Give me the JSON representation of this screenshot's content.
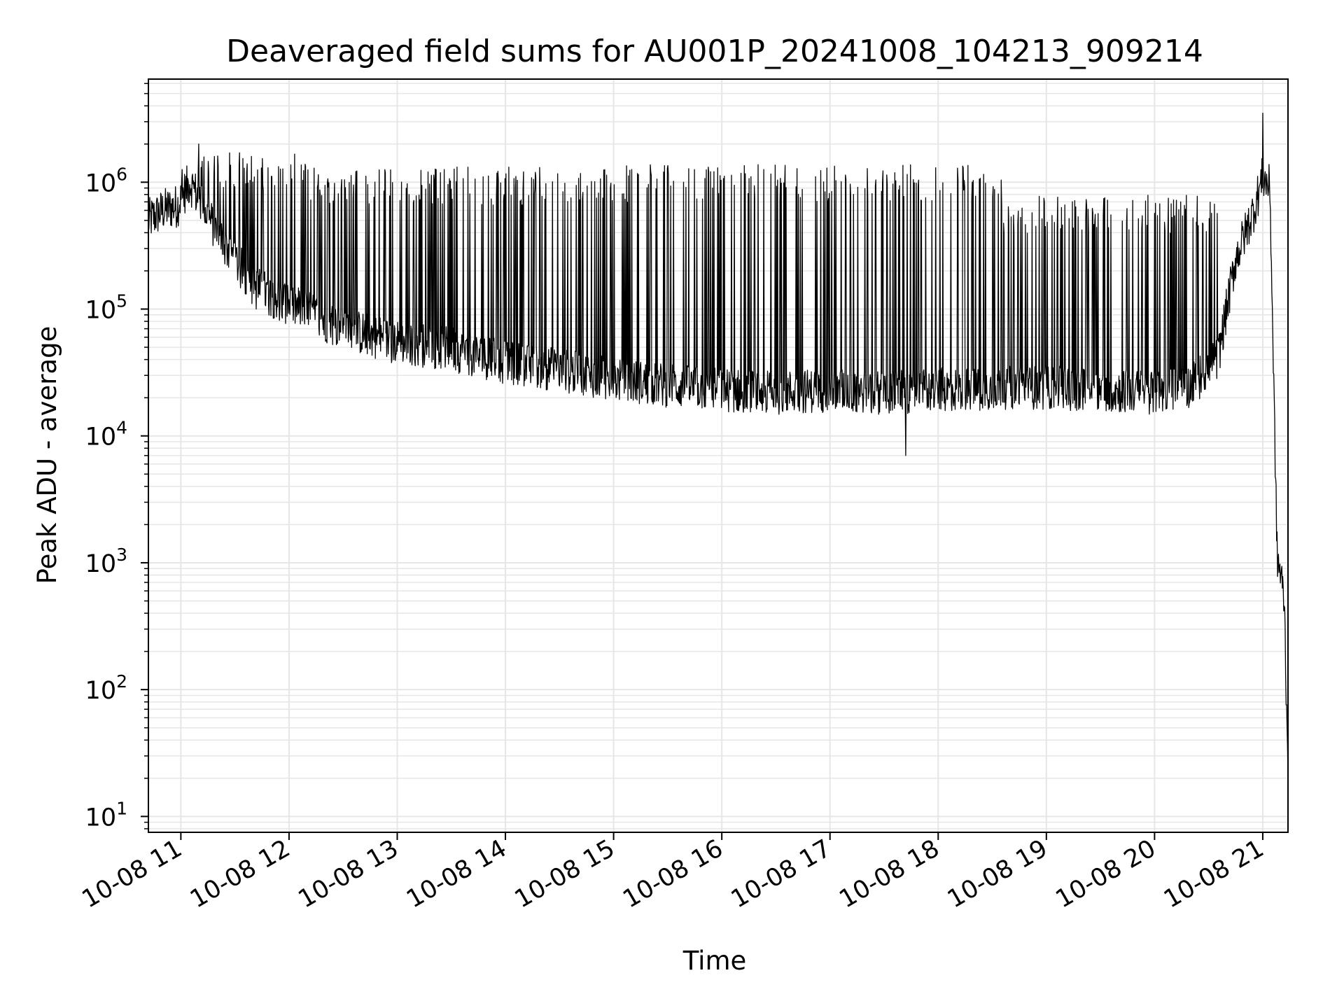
{
  "chart_data": {
    "type": "line",
    "title": "Deaveraged field sums for AU001P_20241008_104213_909214",
    "xlabel": "Time",
    "ylabel": "Peak ADU - average",
    "xlim": [
      "2024-10-08 10:42",
      "2024-10-08 21:14"
    ],
    "ylim": [
      7.5,
      6500000
    ],
    "yscale": "log",
    "grid": true,
    "grid_color": "#e6e6e6",
    "line_color": "#000000",
    "x_ticks": [
      "10-08 11",
      "10-08 12",
      "10-08 13",
      "10-08 14",
      "10-08 15",
      "10-08 16",
      "10-08 17",
      "10-08 18",
      "10-08 19",
      "10-08 20",
      "10-08 21"
    ],
    "x_tick_times": [
      "2024-10-08 11:00",
      "2024-10-08 12:00",
      "2024-10-08 13:00",
      "2024-10-08 14:00",
      "2024-10-08 15:00",
      "2024-10-08 16:00",
      "2024-10-08 17:00",
      "2024-10-08 18:00",
      "2024-10-08 19:00",
      "2024-10-08 20:00",
      "2024-10-08 21:00"
    ],
    "y_ticks": [
      {
        "base": "10",
        "exp": "1",
        "value": 10
      },
      {
        "base": "10",
        "exp": "2",
        "value": 100
      },
      {
        "base": "10",
        "exp": "3",
        "value": 1000
      },
      {
        "base": "10",
        "exp": "4",
        "value": 10000
      },
      {
        "base": "10",
        "exp": "5",
        "value": 100000
      },
      {
        "base": "10",
        "exp": "6",
        "value": 1000000
      }
    ],
    "series": [
      {
        "baseline": {
          "x": [
            "2024-10-08 10:42",
            "2024-10-08 10:50",
            "2024-10-08 10:58",
            "2024-10-08 11:05",
            "2024-10-08 11:20",
            "2024-10-08 11:40",
            "2024-10-08 12:00",
            "2024-10-08 12:30",
            "2024-10-08 13:00",
            "2024-10-08 13:30",
            "2024-10-08 14:00",
            "2024-10-08 14:30",
            "2024-10-08 15:00",
            "2024-10-08 15:30",
            "2024-10-08 16:00",
            "2024-10-08 16:30",
            "2024-10-08 17:00",
            "2024-10-08 17:30",
            "2024-10-08 18:00",
            "2024-10-08 18:30",
            "2024-10-08 19:00",
            "2024-10-08 19:30",
            "2024-10-08 20:00",
            "2024-10-08 20:20",
            "2024-10-08 20:35",
            "2024-10-08 20:45",
            "2024-10-08 20:55",
            "2024-10-08 21:00",
            "2024-10-08 21:04",
            "2024-10-08 21:06",
            "2024-10-08 21:08",
            "2024-10-08 21:10",
            "2024-10-08 21:12",
            "2024-10-08 21:13",
            "2024-10-08 21:14"
          ],
          "y": [
            500000,
            600000,
            650000,
            1000000,
            400000,
            150000,
            110000,
            70000,
            55000,
            48000,
            38000,
            33000,
            28000,
            25000,
            23000,
            22000,
            23000,
            22000,
            23000,
            24000,
            24000,
            23000,
            22000,
            25000,
            40000,
            250000,
            600000,
            1100000,
            900000,
            30000,
            1100,
            800,
            500,
            100,
            30
          ]
        },
        "spike_bands": [
          {
            "x_range": [
              "2024-10-08 11:00",
              "2024-10-08 12:10"
            ],
            "peak": 1300000
          },
          {
            "x_range": [
              "2024-10-08 12:10",
              "2024-10-08 14:20"
            ],
            "peak": 1000000
          },
          {
            "x_range": [
              "2024-10-08 14:20",
              "2024-10-08 18:35"
            ],
            "peak": 1050000
          },
          {
            "x_range": [
              "2024-10-08 18:35",
              "2024-10-08 20:35"
            ],
            "peak": 600000
          }
        ],
        "notable_points": [
          {
            "x": "2024-10-08 11:10",
            "y": 2000000
          },
          {
            "x": "2024-10-08 17:42",
            "y": 7000
          },
          {
            "x": "2024-10-08 21:00",
            "y": 3500000
          }
        ]
      }
    ]
  }
}
